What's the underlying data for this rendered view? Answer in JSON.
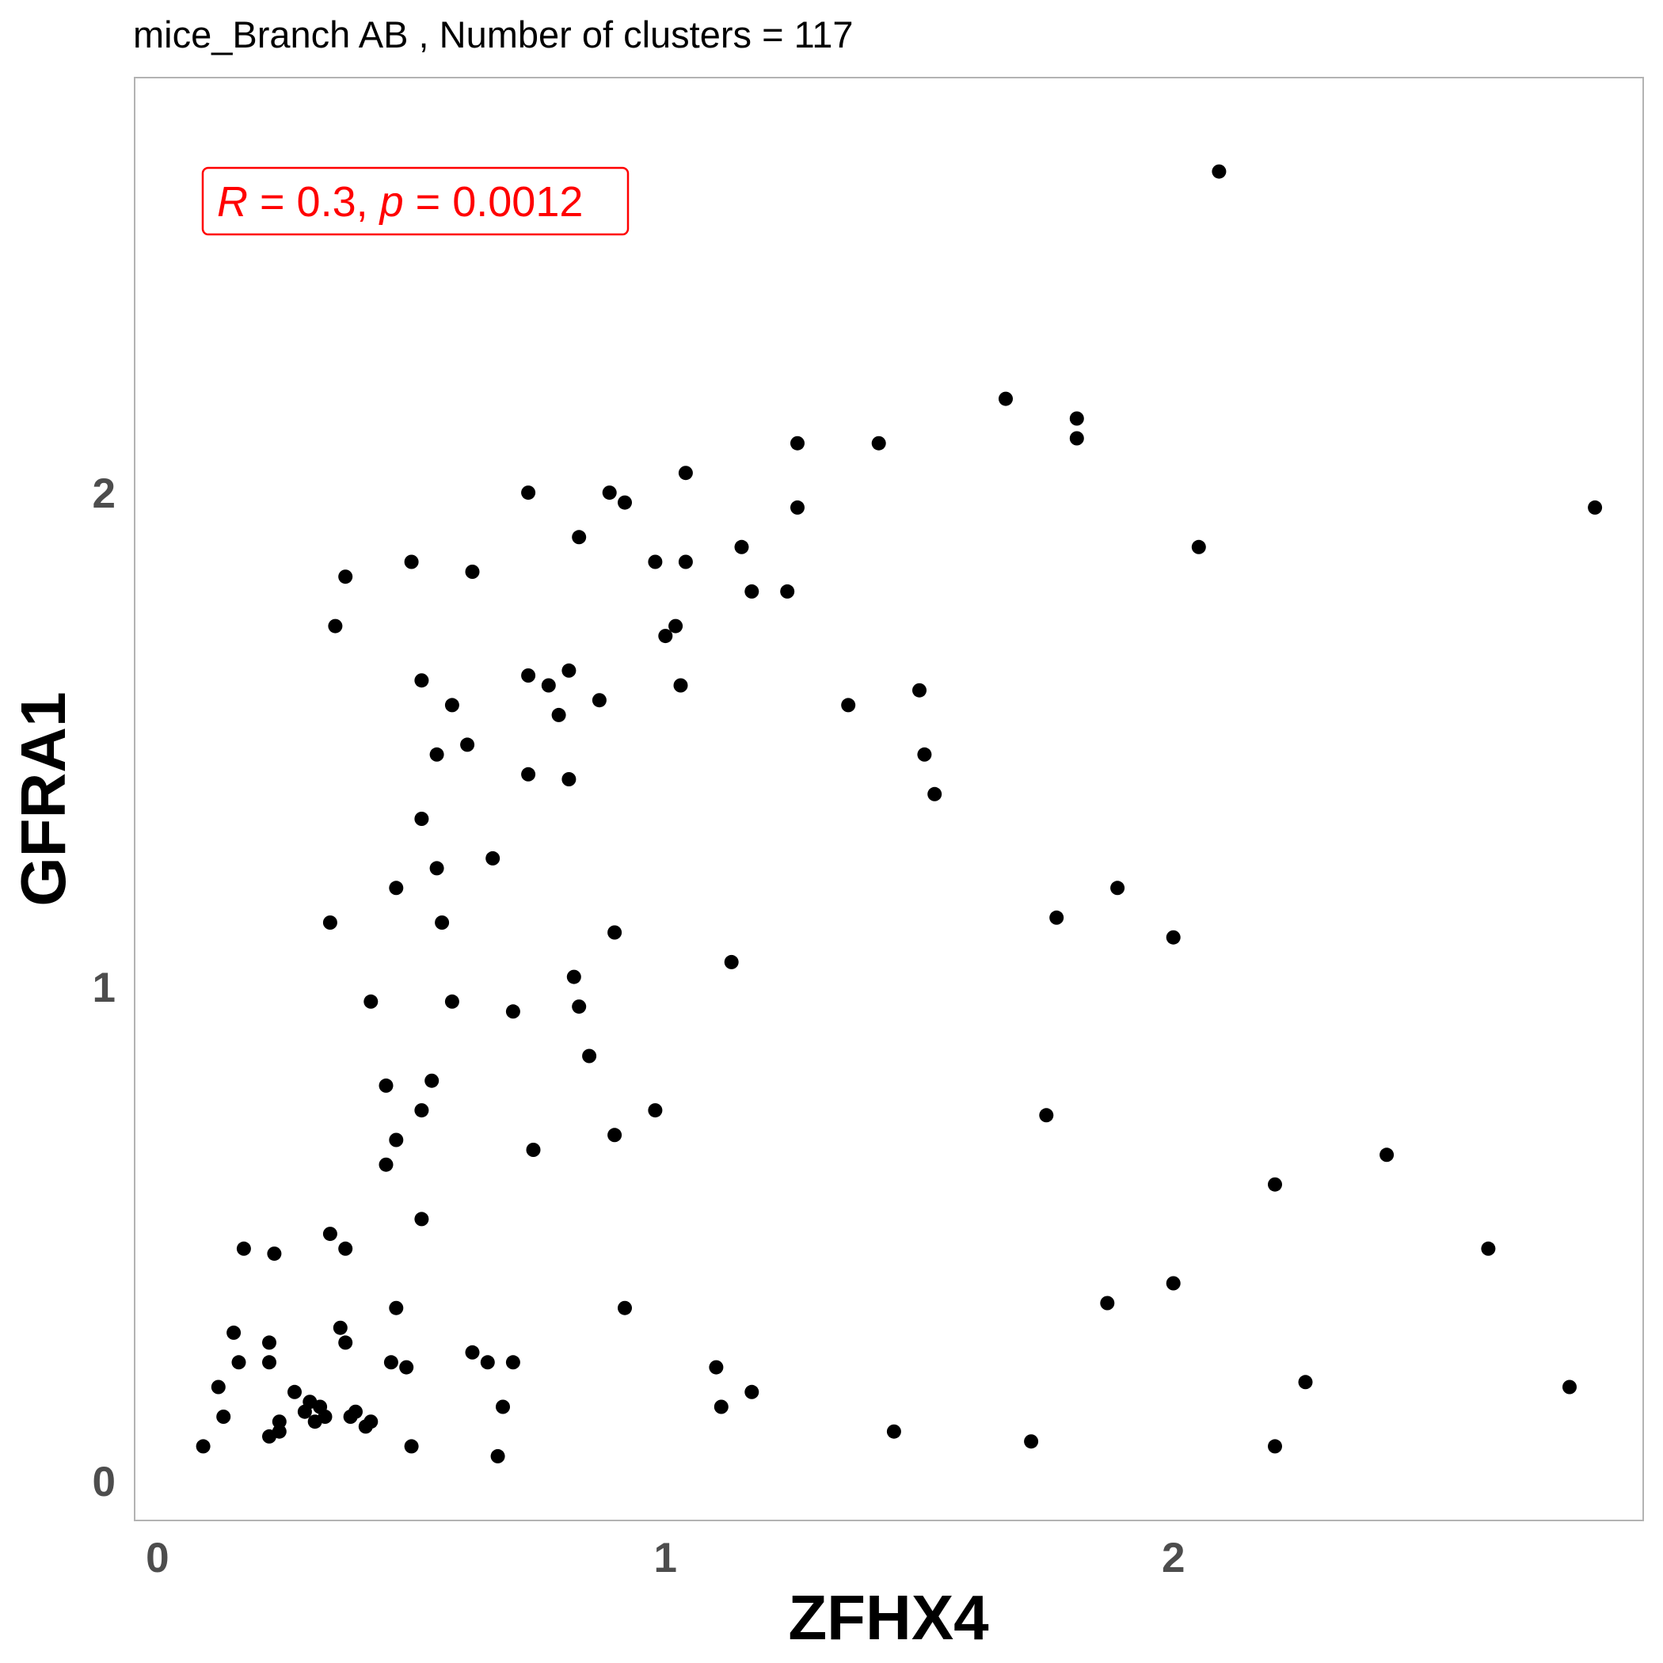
{
  "chart_data": {
    "type": "scatter",
    "title": "mice_Branch AB , Number of clusters =  117",
    "xlabel": "ZFHX4",
    "ylabel": "GFRA1",
    "xlim": [
      -0.045,
      2.925
    ],
    "ylim": [
      -0.08,
      2.84
    ],
    "x_ticks": [
      "0",
      "1",
      "2"
    ],
    "y_ticks": [
      "0",
      "1",
      "2"
    ],
    "grid": false,
    "point_color": "#000000",
    "annotation": {
      "r_symbol": "R",
      "r_text": " = 0.3, ",
      "p_symbol": "p",
      "p_text": " = 0.0012",
      "color": "#ff0000",
      "position": "top-left"
    },
    "points": [
      [
        0.09,
        0.07
      ],
      [
        0.12,
        0.19
      ],
      [
        0.13,
        0.13
      ],
      [
        0.15,
        0.3
      ],
      [
        0.16,
        0.24
      ],
      [
        0.17,
        0.47
      ],
      [
        0.22,
        0.28
      ],
      [
        0.22,
        0.24
      ],
      [
        0.22,
        0.09
      ],
      [
        0.23,
        0.46
      ],
      [
        0.24,
        0.12
      ],
      [
        0.24,
        0.1
      ],
      [
        0.27,
        0.18
      ],
      [
        0.29,
        0.14
      ],
      [
        0.3,
        0.16
      ],
      [
        0.31,
        0.12
      ],
      [
        0.32,
        0.15
      ],
      [
        0.33,
        0.13
      ],
      [
        0.34,
        0.5
      ],
      [
        0.34,
        1.13
      ],
      [
        0.35,
        1.73
      ],
      [
        0.36,
        0.31
      ],
      [
        0.37,
        0.28
      ],
      [
        0.37,
        0.47
      ],
      [
        0.37,
        1.83
      ],
      [
        0.38,
        0.13
      ],
      [
        0.39,
        0.14
      ],
      [
        0.41,
        0.11
      ],
      [
        0.42,
        0.12
      ],
      [
        0.42,
        0.97
      ],
      [
        0.45,
        0.64
      ],
      [
        0.45,
        0.8
      ],
      [
        0.46,
        0.24
      ],
      [
        0.47,
        1.2
      ],
      [
        0.47,
        0.35
      ],
      [
        0.47,
        0.69
      ],
      [
        0.49,
        0.23
      ],
      [
        0.5,
        1.86
      ],
      [
        0.5,
        0.07
      ],
      [
        0.52,
        0.53
      ],
      [
        0.52,
        0.75
      ],
      [
        0.52,
        1.62
      ],
      [
        0.52,
        1.34
      ],
      [
        0.54,
        0.81
      ],
      [
        0.55,
        1.47
      ],
      [
        0.55,
        1.24
      ],
      [
        0.56,
        1.13
      ],
      [
        0.58,
        0.97
      ],
      [
        0.58,
        1.57
      ],
      [
        0.61,
        1.49
      ],
      [
        0.62,
        1.84
      ],
      [
        0.62,
        0.26
      ],
      [
        0.65,
        0.24
      ],
      [
        0.66,
        1.26
      ],
      [
        0.67,
        0.05
      ],
      [
        0.68,
        0.15
      ],
      [
        0.7,
        0.24
      ],
      [
        0.7,
        0.95
      ],
      [
        0.73,
        1.63
      ],
      [
        0.73,
        2.0
      ],
      [
        0.73,
        1.43
      ],
      [
        0.74,
        0.67
      ],
      [
        0.77,
        1.61
      ],
      [
        0.79,
        1.55
      ],
      [
        0.81,
        1.64
      ],
      [
        0.81,
        1.42
      ],
      [
        0.82,
        1.02
      ],
      [
        0.83,
        0.96
      ],
      [
        0.83,
        1.91
      ],
      [
        0.85,
        0.86
      ],
      [
        0.87,
        1.58
      ],
      [
        0.89,
        2.0
      ],
      [
        0.9,
        1.11
      ],
      [
        0.9,
        0.7
      ],
      [
        0.92,
        1.98
      ],
      [
        0.92,
        0.35
      ],
      [
        0.98,
        0.75
      ],
      [
        0.98,
        1.86
      ],
      [
        1.0,
        1.71
      ],
      [
        1.02,
        1.73
      ],
      [
        1.03,
        1.61
      ],
      [
        1.04,
        1.86
      ],
      [
        1.04,
        2.04
      ],
      [
        1.1,
        0.23
      ],
      [
        1.11,
        0.15
      ],
      [
        1.13,
        1.05
      ],
      [
        1.15,
        1.89
      ],
      [
        1.17,
        1.8
      ],
      [
        1.17,
        0.18
      ],
      [
        1.24,
        1.8
      ],
      [
        1.26,
        2.1
      ],
      [
        1.26,
        1.97
      ],
      [
        1.36,
        1.57
      ],
      [
        1.42,
        2.1
      ],
      [
        1.45,
        0.1
      ],
      [
        1.5,
        1.6
      ],
      [
        1.51,
        1.47
      ],
      [
        1.53,
        1.39
      ],
      [
        1.67,
        2.19
      ],
      [
        1.72,
        0.08
      ],
      [
        1.75,
        0.74
      ],
      [
        1.77,
        1.14
      ],
      [
        1.81,
        2.15
      ],
      [
        1.81,
        2.11
      ],
      [
        1.87,
        0.36
      ],
      [
        1.89,
        1.2
      ],
      [
        2.0,
        1.1
      ],
      [
        2.0,
        0.4
      ],
      [
        2.05,
        1.89
      ],
      [
        2.09,
        2.65
      ],
      [
        2.2,
        0.07
      ],
      [
        2.2,
        0.6
      ],
      [
        2.26,
        0.2
      ],
      [
        2.42,
        0.66
      ],
      [
        2.62,
        0.47
      ],
      [
        2.78,
        0.19
      ],
      [
        2.83,
        1.97
      ]
    ]
  }
}
